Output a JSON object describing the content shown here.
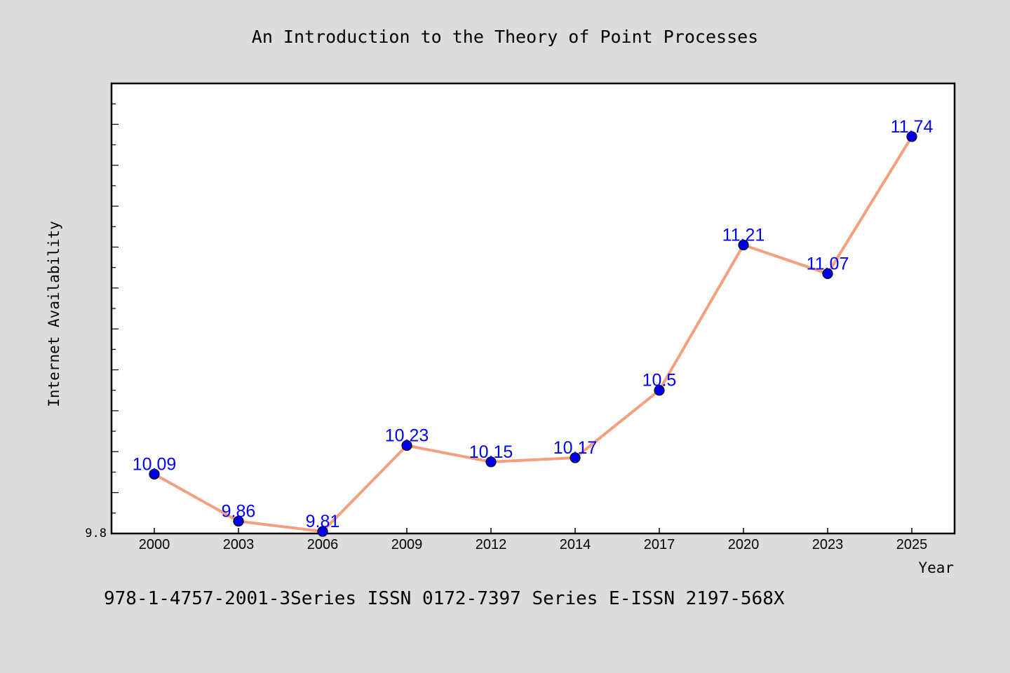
{
  "chart_data": {
    "type": "line",
    "title": "An Introduction to the Theory of Point Processes",
    "xlabel": "Year",
    "ylabel": "Internet Availability",
    "footer": "978-1-4757-2001-3Series ISSN 0172-7397 Series E-ISSN 2197-568X",
    "x": [
      "2000",
      "2003",
      "2006",
      "2009",
      "2012",
      "2014",
      "2017",
      "2020",
      "2023",
      "2025"
    ],
    "values": [
      10.09,
      9.86,
      9.81,
      10.23,
      10.15,
      10.17,
      10.5,
      11.21,
      11.07,
      11.74
    ],
    "data_labels": [
      "10.09",
      "9.86",
      "9.81",
      "10.23",
      "10.15",
      "10.17",
      "10.5",
      "11.21",
      "11.07",
      "11.74"
    ],
    "y_tick_label": "9.8",
    "ylim": [
      9.8,
      12.0
    ],
    "grid": false,
    "colors": {
      "background": "#dcdcdc",
      "plot_background": "#ffffff",
      "line": "#f4a07e",
      "marker": "#0000ee",
      "data_label": "#0000ff"
    }
  }
}
